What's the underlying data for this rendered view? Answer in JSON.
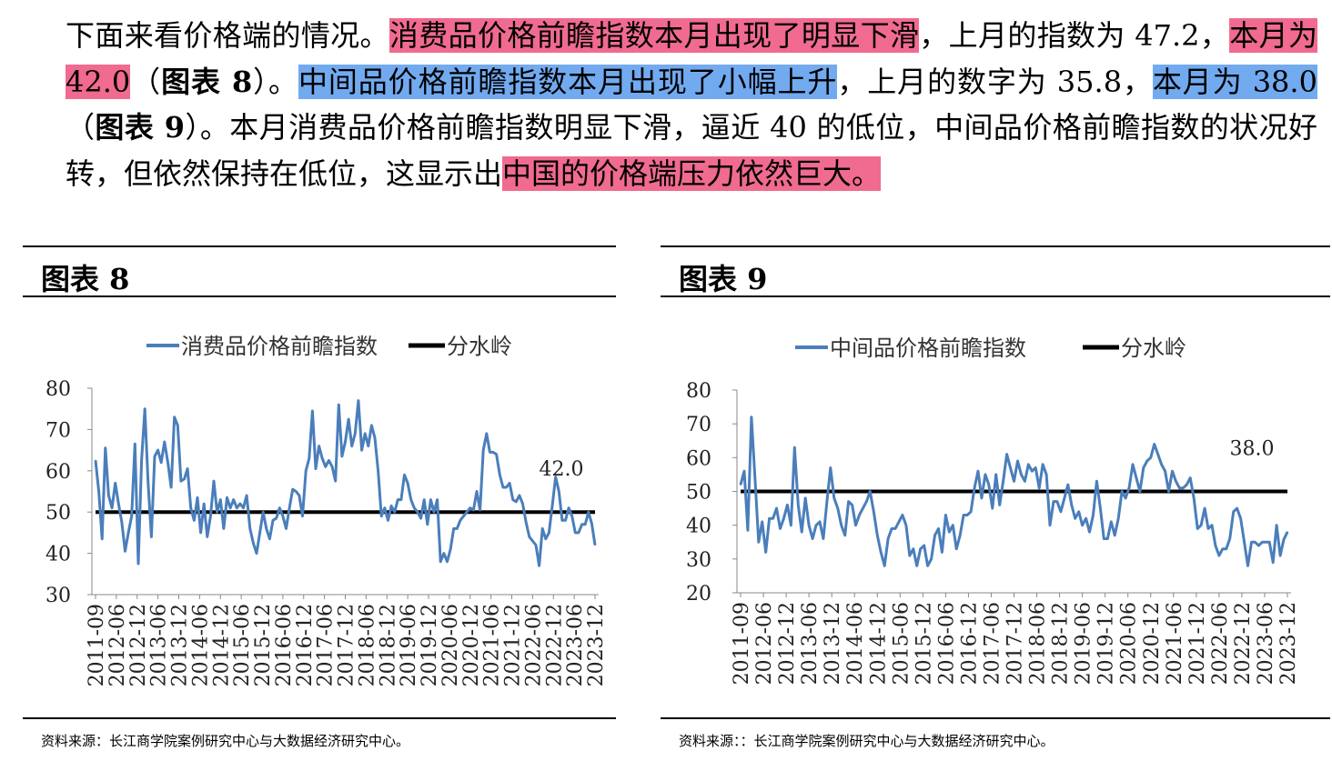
{
  "paragraph": {
    "s1": "下面来看价格端的情况。",
    "s2": "消费品价格前瞻指数本月出现了明显下滑",
    "s3": "，上月的指数为 47.2，",
    "s4": "本月为 42.0",
    "s5": "（",
    "s6": "图表 8",
    "s7": "）。",
    "s8": "中间品价格前瞻指数本月出现了小幅上升",
    "s9": "，上月的数字为 35.8，",
    "s10": "本月为 38.0",
    "s11": "（",
    "s12": "图表 9",
    "s13": "）。本月消费品价格前瞻指数明显下滑，逼近 40 的低位，中间品价格前瞻指数的状况好转，但依然保持在低位，这显示出",
    "s14": "中国的价格端压力依然巨大。"
  },
  "figures": [
    {
      "title": "图表 8",
      "source": "资料来源：长江商学院案例研究中心与大数据经济研究中心。"
    },
    {
      "title": "图表 9",
      "source": "资料来源：：长江商学院案例研究中心与大数据经济研究中心。"
    }
  ],
  "chart_data": [
    {
      "type": "line",
      "x_tick_labels": [
        "2011-09",
        "2012-06",
        "2012-12",
        "2013-06",
        "2013-12",
        "2014-06",
        "2014-12",
        "2015-06",
        "2015-12",
        "2016-06",
        "2016-12",
        "2017-06",
        "2017-12",
        "2018-06",
        "2018-12",
        "2019-06",
        "2019-12",
        "2020-06",
        "2020-12",
        "2021-06",
        "2021-12",
        "2022-06",
        "2022-12",
        "2023-06",
        "2023-12"
      ],
      "ylim": [
        30,
        80
      ],
      "yticks": [
        30,
        40,
        50,
        60,
        70,
        80
      ],
      "legend": [
        "消费品价格前瞻指数",
        "分水岭"
      ],
      "legend_position": "top",
      "grid": false,
      "annotation": "42.0",
      "threshold": 50,
      "series": [
        {
          "name": "消费品价格前瞻指数",
          "color": "#4a7ebb",
          "values": [
            62.5,
            55,
            43.5,
            65.5,
            54,
            51,
            57,
            52,
            47.5,
            40.5,
            45,
            49,
            66.5,
            37.5,
            62.5,
            75,
            57,
            44,
            63.5,
            65,
            62,
            67,
            62,
            56,
            73,
            71,
            57.5,
            58,
            60.5,
            51,
            48,
            53.5,
            45,
            52,
            44,
            49,
            57.5,
            50,
            53,
            46,
            53.5,
            51,
            53,
            51,
            52,
            51,
            54,
            46,
            42.5,
            40,
            45,
            50,
            46,
            43.5,
            48,
            48.5,
            51,
            49,
            46,
            51,
            55.5,
            55,
            54,
            49,
            60,
            63,
            74.5,
            60.5,
            66,
            63,
            61,
            62.5,
            61,
            57.5,
            76,
            63.5,
            67,
            72.5,
            66,
            69,
            77,
            65,
            69,
            66,
            71,
            68,
            60,
            49,
            51,
            48,
            51.5,
            50,
            53,
            53,
            59,
            57,
            53,
            51,
            50,
            48.5,
            53,
            47,
            53,
            50,
            53,
            38,
            40,
            38,
            41,
            46,
            46,
            48,
            49,
            50,
            51,
            50.5,
            55,
            50.5,
            65,
            69,
            64.5,
            64.5,
            64,
            59,
            56,
            56,
            57,
            53,
            52.5,
            54,
            52,
            47.5,
            44,
            43,
            42,
            37,
            46,
            43.5,
            45,
            51.5,
            58.5,
            55,
            48,
            48,
            51,
            49,
            45,
            45,
            47,
            47,
            50,
            47.2,
            42.0
          ]
        },
        {
          "name": "分水岭",
          "color": "#000000",
          "values": [
            50
          ]
        }
      ]
    },
    {
      "type": "line",
      "x_tick_labels": [
        "2011-09",
        "2012-06",
        "2012-12",
        "2013-06",
        "2013-12",
        "2014-06",
        "2014-12",
        "2015-06",
        "2015-12",
        "2016-06",
        "2016-12",
        "2017-06",
        "2017-12",
        "2018-06",
        "2018-12",
        "2019-06",
        "2019-12",
        "2020-06",
        "2020-12",
        "2021-06",
        "2021-12",
        "2022-06",
        "2022-12",
        "2023-06",
        "2023-12"
      ],
      "ylim": [
        20,
        80
      ],
      "yticks": [
        20,
        30,
        40,
        50,
        60,
        70,
        80
      ],
      "legend": [
        "中间品价格前瞻指数",
        "分水岭"
      ],
      "legend_position": "top",
      "grid": false,
      "annotation": "38.0",
      "threshold": 50,
      "series": [
        {
          "name": "中间品价格前瞻指数",
          "color": "#4a7ebb",
          "values": [
            52,
            56,
            38.5,
            72,
            54,
            35,
            41,
            32,
            42,
            42,
            45,
            39,
            42,
            46,
            40,
            63,
            46,
            38,
            48,
            40,
            36,
            40,
            41,
            36,
            47,
            57,
            48,
            45,
            40,
            37,
            47,
            46,
            40,
            43,
            45,
            47,
            50,
            44,
            37,
            32,
            28,
            36,
            39,
            39,
            41,
            43,
            40,
            31,
            33,
            28,
            33,
            34,
            28,
            30,
            37,
            39,
            32,
            43,
            38,
            40,
            33,
            37,
            43,
            43,
            44,
            51,
            56,
            48,
            55,
            52,
            45,
            55,
            46,
            53,
            61,
            57,
            53,
            59,
            55,
            53,
            58,
            56,
            57,
            51,
            58,
            55,
            40,
            47,
            47,
            44,
            48,
            52,
            46,
            42,
            44,
            40,
            42,
            38,
            43,
            53,
            45,
            36,
            36,
            41,
            37,
            42,
            50,
            48,
            51,
            58,
            54,
            50,
            57,
            59,
            60,
            64,
            61,
            58,
            56,
            50,
            56,
            53,
            51,
            51,
            52,
            54,
            48,
            39,
            40,
            45,
            39,
            40,
            34,
            31,
            33,
            33,
            36,
            44,
            45,
            42,
            35,
            28,
            35,
            35,
            34,
            35,
            35,
            35,
            29,
            40,
            31,
            35.8,
            38.0
          ]
        },
        {
          "name": "分水岭",
          "color": "#000000",
          "values": [
            50
          ]
        }
      ]
    }
  ]
}
